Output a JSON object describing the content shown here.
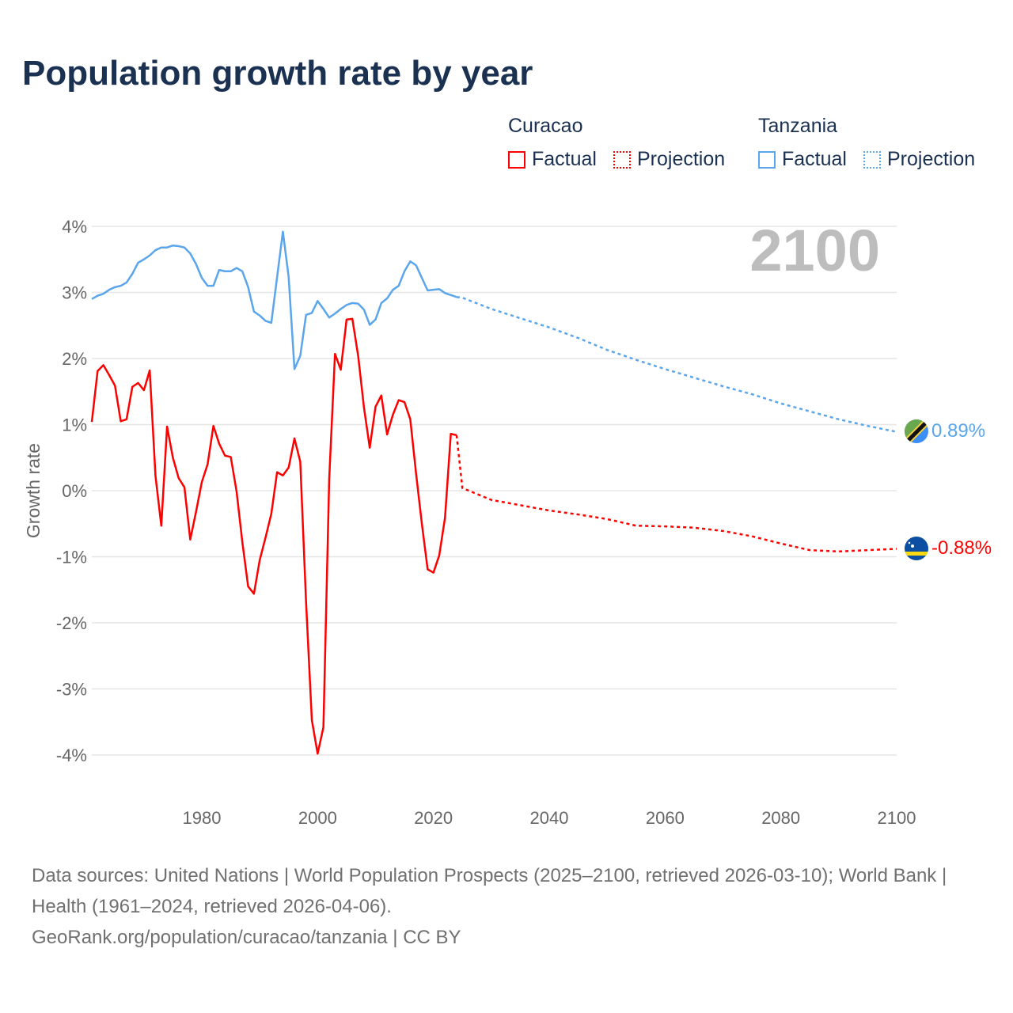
{
  "title": "Population growth rate by year",
  "legend": {
    "groups": [
      {
        "name": "Curacao",
        "color": "#ff0000",
        "factual": "Factual",
        "projection": "Projection"
      },
      {
        "name": "Tanzania",
        "color": "#5aa5ec",
        "factual": "Factual",
        "projection": "Projection"
      }
    ]
  },
  "year_label": "2100",
  "end_labels": {
    "tanzania": "0.89%",
    "curacao": "-0.88%"
  },
  "flags": {
    "tanzania": "tanzania-flag-icon",
    "curacao": "curacao-flag-icon"
  },
  "footer": {
    "line1": "Data sources: United Nations | World Population Prospects (2025–2100, retrieved 2026-03-10); World Bank | Health (1961–2024, retrieved 2026-04-06).",
    "line2": "GeoRank.org/population/curacao/tanzania | CC BY"
  },
  "chart_data": {
    "type": "line",
    "title": "Population growth rate by year",
    "xlabel": "",
    "ylabel": "Growth rate",
    "xlim": [
      1961,
      2100
    ],
    "ylim": [
      -4,
      4
    ],
    "x_ticks": [
      "1980",
      "2000",
      "2020",
      "2040",
      "2060",
      "2080",
      "2100"
    ],
    "x_tick_values": [
      1980,
      2000,
      2020,
      2040,
      2060,
      2080,
      2100
    ],
    "y_ticks": [
      "4%",
      "3%",
      "2%",
      "1%",
      "0%",
      "-1%",
      "-2%",
      "-3%",
      "-4%"
    ],
    "y_tick_values": [
      4,
      3,
      2,
      1,
      0,
      -1,
      -2,
      -3,
      -4
    ],
    "grid": true,
    "legend_position": "top-right",
    "series": [
      {
        "name": "Curacao",
        "color": "#ff0000",
        "factual": {
          "start_year": 1961,
          "values": [
            1.04,
            1.81,
            1.9,
            1.75,
            1.59,
            1.05,
            1.08,
            1.57,
            1.63,
            1.52,
            1.82,
            0.22,
            -0.53,
            0.97,
            0.5,
            0.19,
            0.05,
            -0.74,
            -0.32,
            0.13,
            0.4,
            0.98,
            0.71,
            0.53,
            0.51,
            -0.01,
            -0.78,
            -1.45,
            -1.56,
            -1.05,
            -0.71,
            -0.35,
            0.28,
            0.23,
            0.35,
            0.79,
            0.44,
            -1.68,
            -3.47,
            -3.98,
            -3.58,
            0.18,
            2.07,
            1.83,
            2.59,
            2.6,
            2.04,
            1.26,
            0.65,
            1.27,
            1.44,
            0.85,
            1.15,
            1.37,
            1.34,
            1.08,
            0.26,
            -0.5,
            -1.19,
            -1.24,
            -0.98,
            -0.41,
            0.86,
            0.84
          ]
        },
        "projection": {
          "x": [
            2024,
            2025,
            2030,
            2035,
            2040,
            2045,
            2050,
            2055,
            2060,
            2065,
            2070,
            2075,
            2080,
            2085,
            2090,
            2095,
            2100
          ],
          "values": [
            0.84,
            0.04,
            -0.14,
            -0.22,
            -0.3,
            -0.36,
            -0.43,
            -0.53,
            -0.54,
            -0.56,
            -0.61,
            -0.69,
            -0.8,
            -0.9,
            -0.92,
            -0.9,
            -0.88
          ]
        }
      },
      {
        "name": "Tanzania",
        "color": "#5aa5ec",
        "factual": {
          "start_year": 1961,
          "values": [
            2.9,
            2.95,
            2.98,
            3.04,
            3.08,
            3.1,
            3.15,
            3.28,
            3.45,
            3.5,
            3.56,
            3.64,
            3.68,
            3.68,
            3.71,
            3.7,
            3.68,
            3.59,
            3.43,
            3.22,
            3.1,
            3.1,
            3.34,
            3.32,
            3.32,
            3.37,
            3.32,
            3.08,
            2.71,
            2.65,
            2.57,
            2.54,
            3.23,
            3.92,
            3.23,
            1.84,
            2.04,
            2.66,
            2.69,
            2.87,
            2.75,
            2.62,
            2.68,
            2.75,
            2.81,
            2.84,
            2.83,
            2.74,
            2.51,
            2.59,
            2.84,
            2.91,
            3.04,
            3.1,
            3.32,
            3.47,
            3.41,
            3.22,
            3.03,
            3.04,
            3.05,
            2.99,
            2.96,
            2.93
          ]
        },
        "projection": {
          "x": [
            2024,
            2025,
            2030,
            2035,
            2040,
            2045,
            2050,
            2055,
            2060,
            2065,
            2070,
            2075,
            2080,
            2085,
            2090,
            2095,
            2100
          ],
          "values": [
            2.93,
            2.92,
            2.75,
            2.61,
            2.47,
            2.31,
            2.13,
            1.98,
            1.84,
            1.71,
            1.58,
            1.46,
            1.32,
            1.2,
            1.08,
            0.98,
            0.89
          ]
        }
      }
    ]
  }
}
